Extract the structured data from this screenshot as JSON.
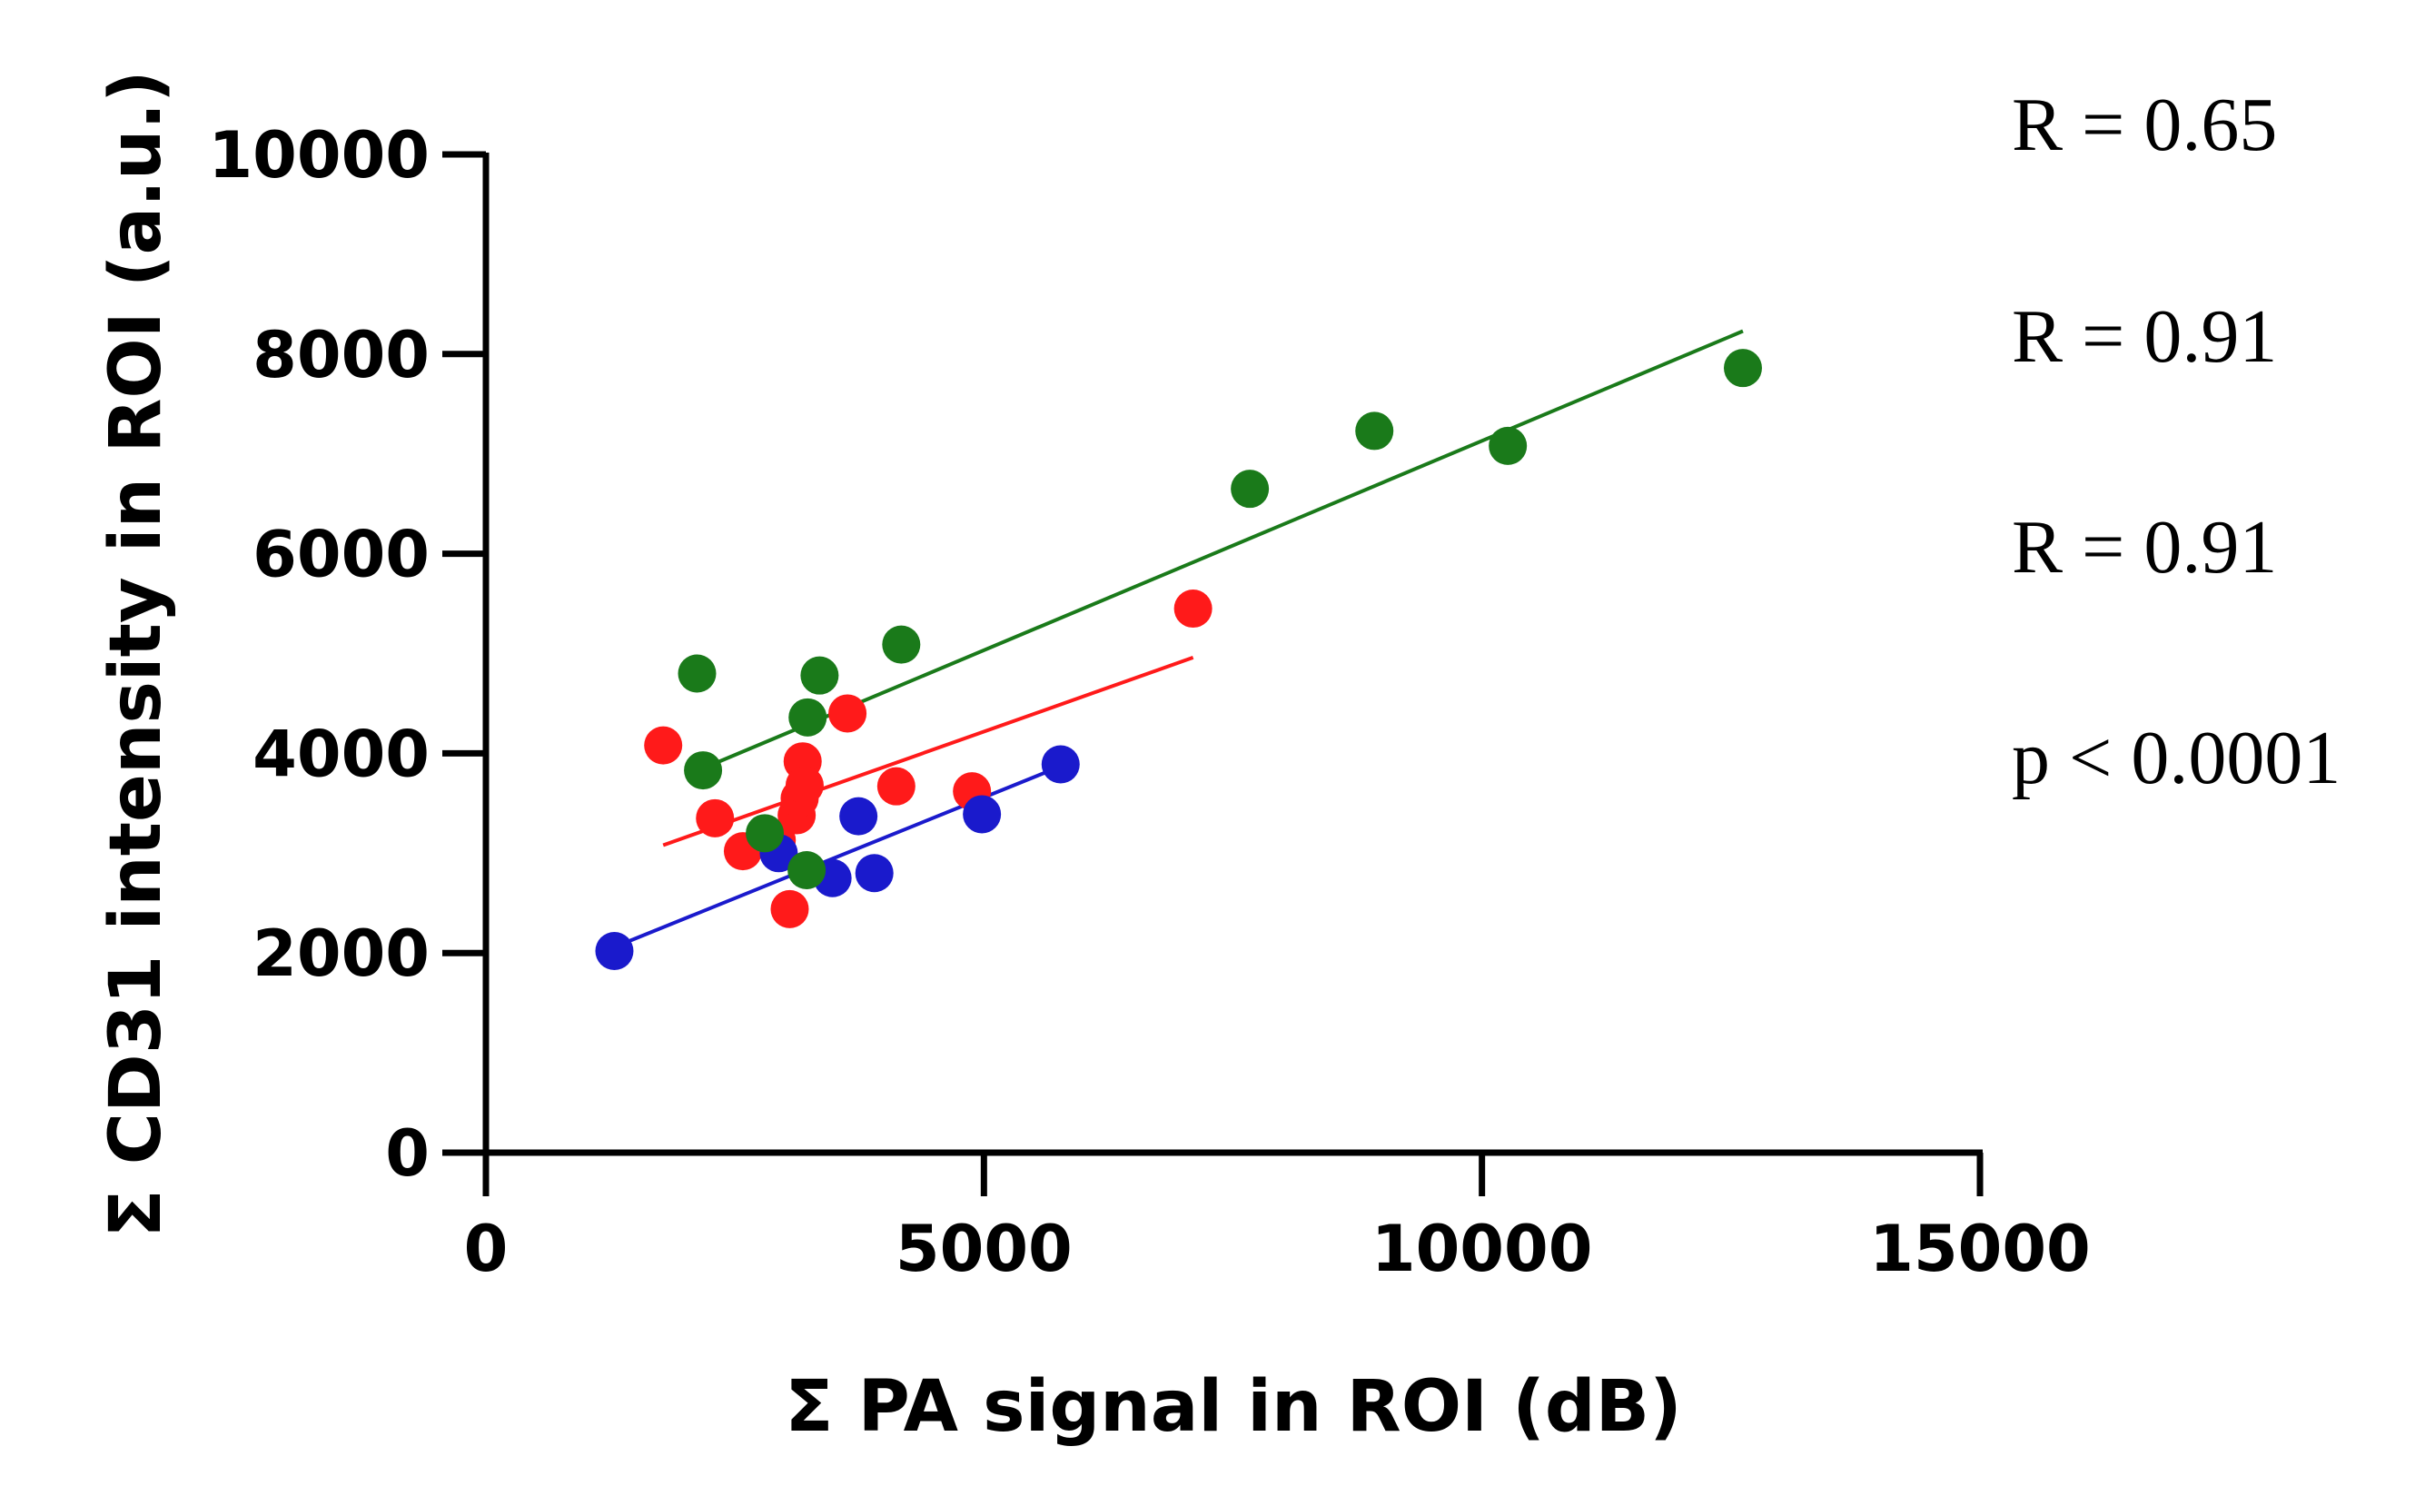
{
  "chart_data": {
    "type": "scatter",
    "xlabel": "Σ PA signal in ROI (dB)",
    "ylabel": "Σ CD31 intensity in ROI (a.u.)",
    "xlim": [
      0,
      15000
    ],
    "ylim": [
      0,
      10000
    ],
    "xticks": [
      "0",
      "5000",
      "10000",
      "15000"
    ],
    "yticks": [
      "0",
      "2000",
      "4000",
      "6000",
      "8000",
      "10000"
    ],
    "grid": false,
    "series": [
      {
        "name": "red",
        "color": "#ff1a1a",
        "x": [
          1780,
          2300,
          2580,
          2920,
          3050,
          3120,
          3150,
          3180,
          3200,
          3630,
          4120,
          4880,
          7100
        ],
        "y": [
          4080,
          3350,
          3020,
          3130,
          2440,
          3380,
          3550,
          3920,
          3680,
          4400,
          3670,
          3620,
          5450
        ],
        "fit": {
          "x": [
            1780,
            7100
          ],
          "y": [
            3080,
            4960
          ]
        }
      },
      {
        "name": "blue",
        "color": "#1a1acc",
        "x": [
          1290,
          2940,
          3480,
          3740,
          3900,
          4980,
          5770
        ],
        "y": [
          2020,
          3000,
          2750,
          3370,
          2800,
          3390,
          3890
        ],
        "fit": {
          "x": [
            1290,
            5770
          ],
          "y": [
            2060,
            3870
          ]
        }
      },
      {
        "name": "green",
        "color": "#1a7a1a",
        "x": [
          2120,
          2180,
          2800,
          3220,
          3230,
          3350,
          4170,
          7670,
          8920,
          10260,
          12620
        ],
        "y": [
          4800,
          3830,
          3200,
          2830,
          4360,
          4780,
          5090,
          6650,
          7230,
          7080,
          7860
        ],
        "fit": {
          "x": [
            2180,
            12620
          ],
          "y": [
            3850,
            8230
          ]
        }
      }
    ],
    "annotations": [
      {
        "text": "R = 0.65",
        "color": "#ff1a1a"
      },
      {
        "text": "R = 0.91",
        "color": "#1a1acc"
      },
      {
        "text": "R = 0.91",
        "color": "#1a7a1a"
      },
      {
        "text": "p < 0.0001",
        "color": "#8a1a9a"
      }
    ]
  }
}
